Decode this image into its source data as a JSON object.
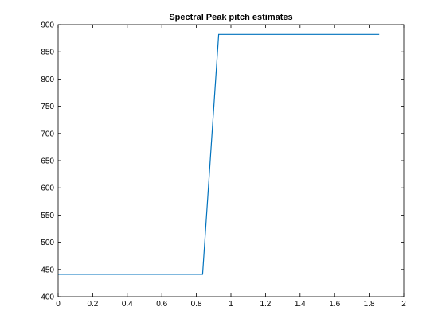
{
  "window": {
    "background": "#ffffff"
  },
  "chart_data": {
    "type": "line",
    "title": "Spectral Peak pitch estimates",
    "xlabel": "",
    "ylabel": "",
    "xlim": [
      0,
      2
    ],
    "ylim": [
      400,
      900
    ],
    "xticks": [
      0,
      0.2,
      0.4,
      0.6,
      0.8,
      1,
      1.2,
      1.4,
      1.6,
      1.8,
      2
    ],
    "xtick_labels": [
      "0",
      "0.2",
      "0.4",
      "0.6",
      "0.8",
      "1",
      "1.2",
      "1.4",
      "1.6",
      "1.8",
      "2"
    ],
    "yticks": [
      400,
      450,
      500,
      550,
      600,
      650,
      700,
      750,
      800,
      850,
      900
    ],
    "ytick_labels": [
      "400",
      "450",
      "500",
      "550",
      "600",
      "650",
      "700",
      "750",
      "800",
      "850",
      "900"
    ],
    "grid": false,
    "legend": "none",
    "series": [
      {
        "color": "#0072bd",
        "x": [
          0,
          0.836,
          0.929,
          1.858
        ],
        "y": [
          441,
          441,
          882,
          882
        ]
      }
    ]
  }
}
